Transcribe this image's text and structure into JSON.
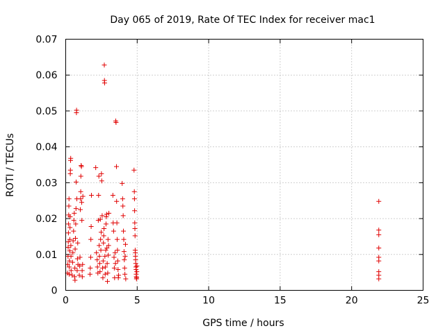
{
  "chart_data": {
    "type": "scatter",
    "title": "Day 065 of 2019, Rate Of TEC Index for receiver mac1",
    "xlabel": "GPS time / hours",
    "ylabel": "ROTI / TECUs",
    "xlim": [
      0,
      25
    ],
    "ylim": [
      0,
      0.07
    ],
    "xticks": [
      0,
      5,
      10,
      15,
      20,
      25
    ],
    "xtick_labels": [
      "0",
      "5",
      "10",
      "15",
      "20",
      "25"
    ],
    "yticks": [
      0,
      0.01,
      0.02,
      0.03,
      0.04,
      0.05,
      0.06,
      0.07
    ],
    "ytick_labels": [
      "0",
      "0.01",
      "0.02",
      "0.03",
      "0.04",
      "0.05",
      "0.06",
      "0.07"
    ],
    "grid": true,
    "marker": "plus",
    "color": "#e00000",
    "points": [
      [
        0.12,
        0.0048
      ],
      [
        0.14,
        0.0072
      ],
      [
        0.16,
        0.0095
      ],
      [
        0.17,
        0.012
      ],
      [
        0.18,
        0.0135
      ],
      [
        0.19,
        0.016
      ],
      [
        0.2,
        0.0185
      ],
      [
        0.21,
        0.021
      ],
      [
        0.22,
        0.0235
      ],
      [
        0.23,
        0.0255
      ],
      [
        0.24,
        0.0045
      ],
      [
        0.25,
        0.0065
      ],
      [
        0.26,
        0.0082
      ],
      [
        0.28,
        0.011
      ],
      [
        0.29,
        0.0142
      ],
      [
        0.3,
        0.0175
      ],
      [
        0.31,
        0.0205
      ],
      [
        0.32,
        0.0325
      ],
      [
        0.33,
        0.0335
      ],
      [
        0.34,
        0.0362
      ],
      [
        0.35,
        0.0368
      ],
      [
        0.36,
        0.0125
      ],
      [
        0.37,
        0.0095
      ],
      [
        0.38,
        0.0055
      ],
      [
        0.45,
        0.0042
      ],
      [
        0.48,
        0.0078
      ],
      [
        0.5,
        0.0105
      ],
      [
        0.52,
        0.0138
      ],
      [
        0.55,
        0.0165
      ],
      [
        0.57,
        0.0195
      ],
      [
        0.6,
        0.0215
      ],
      [
        0.62,
        0.0038
      ],
      [
        0.64,
        0.0062
      ],
      [
        0.65,
        0.0028
      ],
      [
        0.66,
        0.0115
      ],
      [
        0.68,
        0.0145
      ],
      [
        0.7,
        0.0185
      ],
      [
        0.72,
        0.0228
      ],
      [
        0.73,
        0.0302
      ],
      [
        0.75,
        0.0495
      ],
      [
        0.76,
        0.0502
      ],
      [
        0.78,
        0.0255
      ],
      [
        0.8,
        0.0055
      ],
      [
        0.82,
        0.0088
      ],
      [
        0.84,
        0.0132
      ],
      [
        0.86,
        0.0072
      ],
      [
        0.95,
        0.0042
      ],
      [
        0.98,
        0.0068
      ],
      [
        1.0,
        0.0092
      ],
      [
        1.02,
        0.0225
      ],
      [
        1.04,
        0.0255
      ],
      [
        1.05,
        0.0275
      ],
      [
        1.06,
        0.0318
      ],
      [
        1.08,
        0.0348
      ],
      [
        1.1,
        0.0345
      ],
      [
        1.12,
        0.0245
      ],
      [
        1.13,
        0.0195
      ],
      [
        1.15,
        0.0055
      ],
      [
        1.16,
        0.0038
      ],
      [
        1.18,
        0.0072
      ],
      [
        1.2,
        0.0262
      ],
      [
        1.7,
        0.0045
      ],
      [
        1.72,
        0.0062
      ],
      [
        1.75,
        0.0092
      ],
      [
        1.76,
        0.0142
      ],
      [
        1.78,
        0.0178
      ],
      [
        1.8,
        0.0265
      ],
      [
        2.1,
        0.0342
      ],
      [
        2.15,
        0.0105
      ],
      [
        2.2,
        0.0085
      ],
      [
        2.22,
        0.0065
      ],
      [
        2.25,
        0.0048
      ],
      [
        2.28,
        0.0195
      ],
      [
        2.3,
        0.0265
      ],
      [
        2.32,
        0.0318
      ],
      [
        2.34,
        0.0125
      ],
      [
        2.36,
        0.0095
      ],
      [
        2.38,
        0.0075
      ],
      [
        2.4,
        0.0052
      ],
      [
        2.42,
        0.0198
      ],
      [
        2.44,
        0.0142
      ],
      [
        2.46,
        0.0112
      ],
      [
        2.48,
        0.0162
      ],
      [
        2.5,
        0.0325
      ],
      [
        2.52,
        0.0305
      ],
      [
        2.55,
        0.0208
      ],
      [
        2.58,
        0.0062
      ],
      [
        2.6,
        0.0035
      ],
      [
        2.62,
        0.0082
      ],
      [
        2.64,
        0.0132
      ],
      [
        2.66,
        0.0152
      ],
      [
        2.68,
        0.0172
      ],
      [
        2.7,
        0.0628
      ],
      [
        2.71,
        0.0585
      ],
      [
        2.72,
        0.0578
      ],
      [
        2.74,
        0.0095
      ],
      [
        2.76,
        0.0045
      ],
      [
        2.78,
        0.0065
      ],
      [
        2.8,
        0.0112
      ],
      [
        2.82,
        0.0185
      ],
      [
        2.84,
        0.0205
      ],
      [
        2.86,
        0.0212
      ],
      [
        2.88,
        0.0118
      ],
      [
        2.9,
        0.0075
      ],
      [
        2.92,
        0.0025
      ],
      [
        2.94,
        0.0048
      ],
      [
        2.96,
        0.0142
      ],
      [
        2.98,
        0.0098
      ],
      [
        3.0,
        0.0125
      ],
      [
        3.02,
        0.0215
      ],
      [
        3.3,
        0.0265
      ],
      [
        3.32,
        0.0188
      ],
      [
        3.35,
        0.0165
      ],
      [
        3.38,
        0.0092
      ],
      [
        3.4,
        0.0062
      ],
      [
        3.42,
        0.0035
      ],
      [
        3.45,
        0.0105
      ],
      [
        3.48,
        0.0075
      ],
      [
        3.5,
        0.0472
      ],
      [
        3.52,
        0.0468
      ],
      [
        3.55,
        0.0345
      ],
      [
        3.56,
        0.0248
      ],
      [
        3.58,
        0.0188
      ],
      [
        3.6,
        0.0142
      ],
      [
        3.62,
        0.0112
      ],
      [
        3.64,
        0.0082
      ],
      [
        3.66,
        0.0058
      ],
      [
        3.68,
        0.0035
      ],
      [
        3.7,
        0.0042
      ],
      [
        3.95,
        0.0298
      ],
      [
        3.98,
        0.0255
      ],
      [
        4.0,
        0.0235
      ],
      [
        4.02,
        0.0208
      ],
      [
        4.04,
        0.0165
      ],
      [
        4.06,
        0.0142
      ],
      [
        4.08,
        0.0108
      ],
      [
        4.1,
        0.0085
      ],
      [
        4.12,
        0.0062
      ],
      [
        4.14,
        0.0045
      ],
      [
        4.16,
        0.0095
      ],
      [
        4.18,
        0.0128
      ],
      [
        4.2,
        0.0032
      ],
      [
        4.78,
        0.0335
      ],
      [
        4.8,
        0.0275
      ],
      [
        4.81,
        0.0255
      ],
      [
        4.82,
        0.0222
      ],
      [
        4.83,
        0.0188
      ],
      [
        4.84,
        0.0172
      ],
      [
        4.85,
        0.0152
      ],
      [
        4.86,
        0.0112
      ],
      [
        4.87,
        0.0105
      ],
      [
        4.88,
        0.0095
      ],
      [
        4.89,
        0.0085
      ],
      [
        4.9,
        0.0075
      ],
      [
        4.91,
        0.0065
      ],
      [
        4.92,
        0.0058
      ],
      [
        4.93,
        0.0045
      ],
      [
        4.94,
        0.0038
      ],
      [
        4.95,
        0.0032
      ],
      [
        4.96,
        0.0035
      ],
      [
        4.97,
        0.0052
      ],
      [
        4.98,
        0.0068
      ],
      [
        21.9,
        0.0248
      ],
      [
        21.9,
        0.0168
      ],
      [
        21.9,
        0.0155
      ],
      [
        21.9,
        0.0118
      ],
      [
        21.9,
        0.0092
      ],
      [
        21.9,
        0.0082
      ],
      [
        21.9,
        0.0052
      ],
      [
        21.9,
        0.0042
      ],
      [
        21.9,
        0.0032
      ]
    ]
  }
}
